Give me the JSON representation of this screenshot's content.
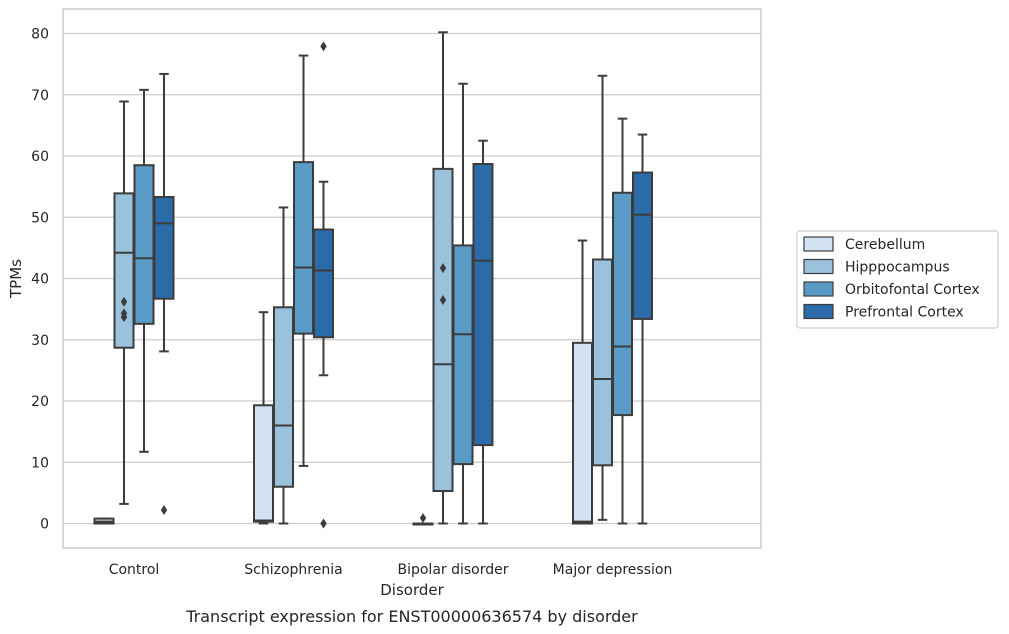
{
  "caption": "Transcript expression for ENST00000636574 by disorder",
  "chart_data": {
    "type": "box",
    "xlabel": "Disorder",
    "ylabel": "TPMs",
    "ylim": [
      -4,
      84
    ],
    "yticks": [
      0,
      10,
      20,
      30,
      40,
      50,
      60,
      70,
      80
    ],
    "grid": "horizontal",
    "legend_position": "right",
    "categories": [
      "Control",
      "Schizophrenia",
      "Bipolar disorder",
      "Major depression"
    ],
    "series": [
      {
        "name": "Cerebellum",
        "color": "#d4e3f3",
        "boxes": [
          {
            "whisker_low": 0,
            "q1": 0,
            "median": 0.3,
            "q3": 0.8,
            "whisker_high": 0.8,
            "outliers": []
          },
          {
            "whisker_low": 0,
            "q1": 0.3,
            "median": 0.5,
            "q3": 19.3,
            "whisker_high": 34.5,
            "outliers": []
          },
          {
            "whisker_low": 0,
            "q1": 0,
            "median": 0,
            "q3": 0,
            "whisker_high": 0,
            "outliers": [
              0.9
            ]
          },
          {
            "whisker_low": 0,
            "q1": 0,
            "median": 0.3,
            "q3": 29.5,
            "whisker_high": 46.2,
            "outliers": []
          }
        ]
      },
      {
        "name": "Hipppocampus",
        "color": "#9ac2dc",
        "boxes": [
          {
            "whisker_low": 3.2,
            "q1": 28.7,
            "median": 44.2,
            "q3": 53.9,
            "whisker_high": 68.9,
            "outliers": [
              33.7,
              34.3,
              36.2
            ]
          },
          {
            "whisker_low": 0,
            "q1": 6.0,
            "median": 16.0,
            "q3": 35.3,
            "whisker_high": 51.6,
            "outliers": []
          },
          {
            "whisker_low": 0,
            "q1": 5.3,
            "median": 26.0,
            "q3": 57.9,
            "whisker_high": 80.2,
            "outliers": [
              36.5,
              41.7
            ]
          },
          {
            "whisker_low": 0.6,
            "q1": 9.5,
            "median": 23.6,
            "q3": 43.1,
            "whisker_high": 73.1,
            "outliers": []
          }
        ]
      },
      {
        "name": "Orbitofontal Cortex",
        "color": "#5a9ac6",
        "boxes": [
          {
            "whisker_low": 11.7,
            "q1": 32.6,
            "median": 43.3,
            "q3": 58.5,
            "whisker_high": 70.8,
            "outliers": []
          },
          {
            "whisker_low": 9.4,
            "q1": 31.0,
            "median": 41.8,
            "q3": 59.0,
            "whisker_high": 76.4,
            "outliers": []
          },
          {
            "whisker_low": 0,
            "q1": 9.7,
            "median": 30.9,
            "q3": 45.4,
            "whisker_high": 71.8,
            "outliers": []
          },
          {
            "whisker_low": 0,
            "q1": 17.7,
            "median": 28.9,
            "q3": 54.0,
            "whisker_high": 66.1,
            "outliers": []
          }
        ]
      },
      {
        "name": "Prefrontal Cortex",
        "color": "#2b6ba7",
        "boxes": [
          {
            "whisker_low": 28.1,
            "q1": 36.7,
            "median": 49.0,
            "q3": 53.3,
            "whisker_high": 73.4,
            "outliers": [
              2.2
            ]
          },
          {
            "whisker_low": 24.2,
            "q1": 30.4,
            "median": 41.3,
            "q3": 48.0,
            "whisker_high": 55.8,
            "outliers": [
              0,
              77.9
            ]
          },
          {
            "whisker_low": 0,
            "q1": 12.8,
            "median": 42.9,
            "q3": 58.7,
            "whisker_high": 62.5,
            "outliers": []
          },
          {
            "whisker_low": 0,
            "q1": 33.4,
            "median": 50.4,
            "q3": 57.3,
            "whisker_high": 63.5,
            "outliers": []
          }
        ]
      }
    ]
  },
  "colors": {
    "grid": "#cccccc",
    "frame": "#cccccc",
    "box_line": "#3c3c3c",
    "text": "#262626"
  }
}
